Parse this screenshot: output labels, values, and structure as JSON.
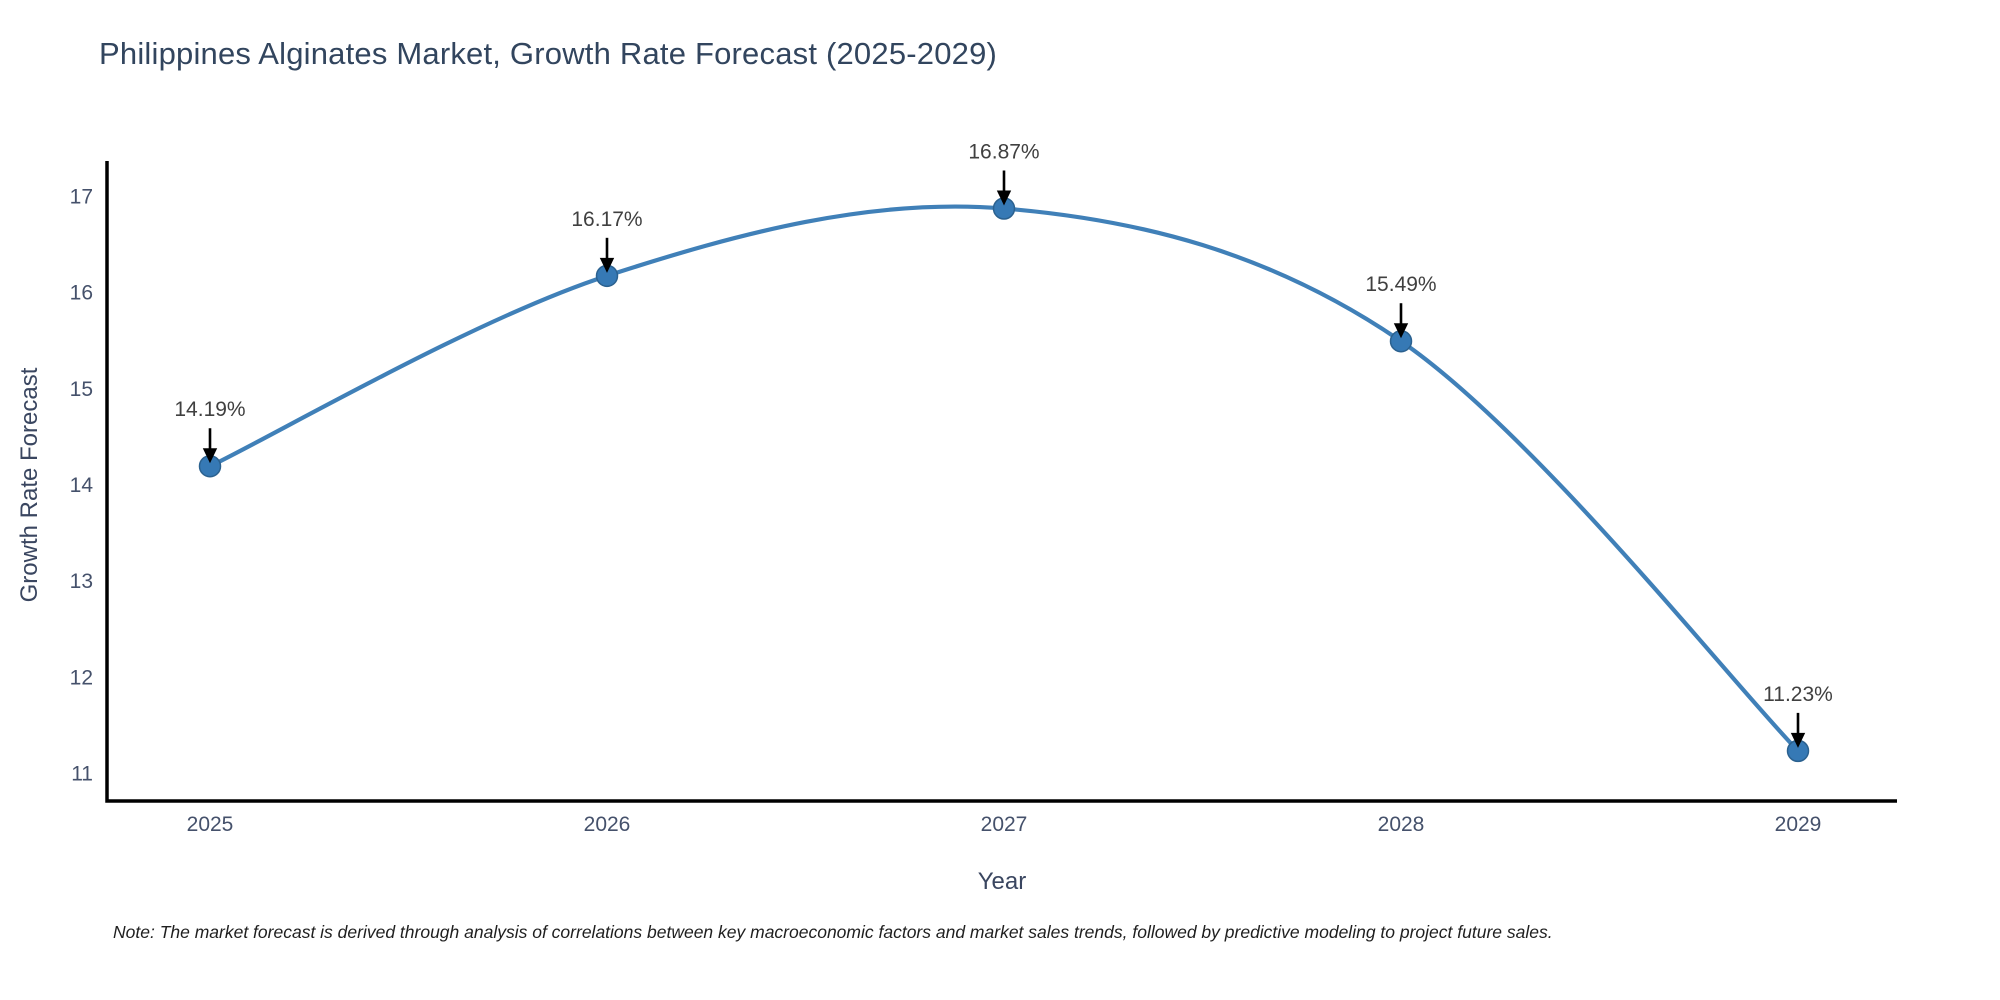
{
  "chart_data": {
    "type": "line",
    "title": "Philippines Alginates Market, Growth Rate Forecast (2025-2029)",
    "xlabel": "Year",
    "ylabel": "Growth Rate Forecast",
    "x": [
      2025,
      2026,
      2027,
      2028,
      2029
    ],
    "series": [
      {
        "name": "Growth Rate Forecast",
        "values": [
          14.19,
          16.17,
          16.87,
          15.49,
          11.23
        ],
        "point_labels": [
          "14.19%",
          "16.17%",
          "16.87%",
          "15.49%",
          "11.23%"
        ]
      }
    ],
    "xticks": [
      "2025",
      "2026",
      "2027",
      "2028",
      "2029"
    ],
    "yticks": [
      "11",
      "12",
      "13",
      "14",
      "15",
      "16",
      "17"
    ],
    "ytick_values": [
      11,
      12,
      13,
      14,
      15,
      16,
      17
    ],
    "xlim": [
      2024.74,
      2029.25
    ],
    "ylim": [
      10.7,
      17.36
    ],
    "grid": false,
    "legend": false,
    "line_shape": "spline",
    "annotations_have_arrows": true,
    "colors": {
      "line": "#4080b8",
      "marker_fill": "#3679b5",
      "marker_edge": "#2b618f",
      "axis_line": "#000000",
      "tick_label": "#45516b",
      "annotation_text": "#404040",
      "arrow": "#000000",
      "title": "#32455e",
      "axis_title": "#3a4660",
      "background": "#ffffff"
    }
  },
  "note": "Note: The market forecast is derived through analysis of correlations between key macroeconomic factors and market sales trends, followed by predictive modeling to project future sales."
}
